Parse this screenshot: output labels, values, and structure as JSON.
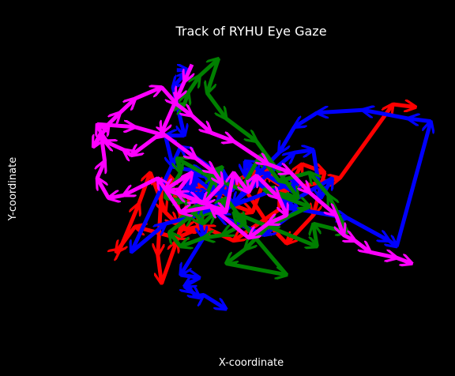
{
  "chart_data": {
    "type": "line",
    "title": "Track of RYHU Eye Gaze",
    "xlabel": "X-coordinate",
    "ylabel": "Y-coordinate",
    "xlim": [
      0,
      100
    ],
    "ylim": [
      0,
      100
    ],
    "grid": false,
    "axes_visible": false,
    "markers": "arrows",
    "background": "#000000",
    "text_color": "#ffffff",
    "series": [
      {
        "color": "#ff0000",
        "x": [
          58,
          46,
          38,
          31,
          20,
          15,
          16,
          21,
          24,
          28,
          31,
          37,
          45,
          51,
          55,
          60,
          58,
          64,
          70,
          67,
          60,
          55,
          48,
          41,
          36,
          37,
          33,
          29,
          27,
          26,
          27,
          31,
          35,
          44,
          52,
          60,
          74,
          88,
          94
        ],
        "y": [
          43,
          32,
          37,
          33,
          37,
          28,
          29,
          45,
          56,
          42,
          38,
          52,
          45,
          42,
          57,
          49,
          44,
          59,
          56,
          41,
          31,
          38,
          52,
          49,
          45,
          37,
          36,
          55,
          50,
          27,
          17,
          32,
          50,
          51,
          57,
          50,
          54,
          80,
          79
        ]
      },
      {
        "color": "#0000ff",
        "x": [
          31,
          34,
          30,
          33,
          28,
          30,
          38,
          41,
          35,
          33,
          40,
          38,
          39,
          34,
          36,
          35,
          41,
          44,
          32,
          19,
          28,
          45,
          63,
          62,
          49,
          49,
          63,
          54,
          42,
          62,
          67,
          69,
          72,
          59,
          76,
          87,
          89,
          98,
          92,
          80,
          68,
          62,
          58,
          52,
          46,
          40,
          43,
          46,
          36,
          38,
          32,
          37,
          33,
          35,
          37,
          38,
          44
        ],
        "y": [
          92,
          92,
          86,
          69,
          69,
          58,
          56,
          49,
          55,
          49,
          48,
          42,
          46,
          50,
          56,
          46,
          43,
          54,
          65,
          28,
          38,
          44,
          53,
          49,
          60,
          55,
          43,
          34,
          41,
          63,
          64,
          47,
          54,
          44,
          40,
          32,
          30,
          74,
          75,
          78,
          77,
          72,
          63,
          55,
          45,
          55,
          57,
          50,
          47,
          33,
          20,
          19,
          16,
          14,
          12,
          13,
          8
        ]
      },
      {
        "color": "#008000",
        "x": [
          30,
          33,
          34,
          37,
          42,
          39,
          44,
          52,
          63,
          54,
          66,
          55,
          49,
          44,
          60,
          46,
          68,
          67,
          76,
          71,
          66,
          58,
          53,
          48,
          39,
          31,
          32,
          28,
          33,
          38,
          41,
          44,
          49,
          43,
          38,
          32,
          29,
          35,
          38,
          41,
          43
        ],
        "y": [
          78,
          80,
          84,
          90,
          96,
          84,
          75,
          67,
          47,
          50,
          44,
          37,
          29,
          24,
          20,
          42,
          30,
          38,
          35,
          48,
          56,
          53,
          62,
          50,
          55,
          61,
          56,
          47,
          46,
          38,
          42,
          47,
          38,
          34,
          33,
          30,
          35,
          41,
          45,
          55,
          58
        ]
      },
      {
        "color": "#ff00ff",
        "x": [
          35,
          33,
          31,
          27,
          19,
          17,
          12,
          10,
          20,
          28,
          36,
          41,
          43,
          38,
          31,
          35,
          28,
          37,
          44,
          46,
          50,
          52,
          58,
          60,
          55,
          50,
          40,
          32,
          26,
          17,
          13,
          10,
          12,
          11,
          9,
          13,
          16,
          20,
          27,
          31,
          35,
          40,
          46,
          55,
          61,
          66,
          73,
          75,
          78,
          82,
          89,
          93
        ],
        "y": [
          94,
          88,
          82,
          70,
          62,
          64,
          67,
          73,
          72,
          69,
          61,
          56,
          52,
          45,
          49,
          56,
          50,
          46,
          42,
          56,
          49,
          55,
          47,
          41,
          38,
          33,
          44,
          42,
          54,
          48,
          47,
          54,
          60,
          70,
          65,
          73,
          77,
          82,
          86,
          80,
          76,
          70,
          67,
          59,
          56,
          49,
          41,
          34,
          32,
          28,
          26,
          24
        ]
      }
    ]
  }
}
